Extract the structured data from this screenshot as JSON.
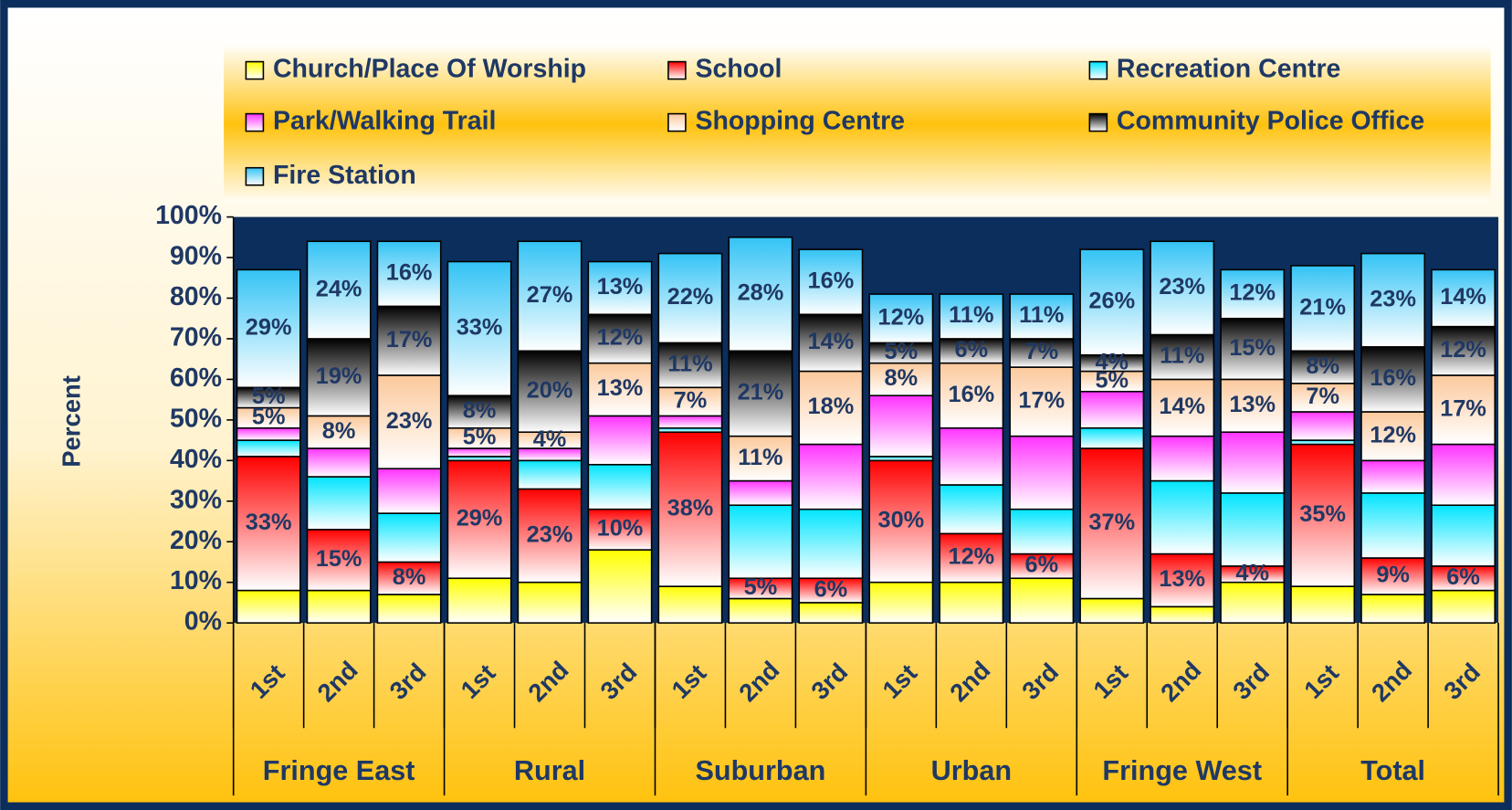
{
  "chart_data": {
    "type": "stacked_bar",
    "y_label": "Percent",
    "categories": [
      "1st",
      "2nd",
      "3rd",
      "1st",
      "2nd",
      "3rd",
      "1st",
      "2nd",
      "3rd",
      "1st",
      "2nd",
      "3rd",
      "1st",
      "2nd",
      "3rd",
      "1st",
      "2nd",
      "3rd"
    ],
    "groups": [
      "Fringe East",
      "Rural",
      "Suburban",
      "Urban",
      "Fringe West",
      "Total"
    ],
    "ylim": [
      0,
      100
    ],
    "yticks": [
      {
        "value": 0,
        "label": "0%"
      },
      {
        "value": 10,
        "label": "10%"
      },
      {
        "value": 20,
        "label": "20%"
      },
      {
        "value": 30,
        "label": "30%"
      },
      {
        "value": 40,
        "label": "40%"
      },
      {
        "value": 50,
        "label": "50%"
      },
      {
        "value": 60,
        "label": "60%"
      },
      {
        "value": 70,
        "label": "70%"
      },
      {
        "value": 80,
        "label": "80%"
      },
      {
        "value": 90,
        "label": "90%"
      },
      {
        "value": 100,
        "label": "100%"
      }
    ],
    "series": [
      {
        "name": "Church/Place Of Worship",
        "color": "#ffff00",
        "values": [
          8,
          8,
          7,
          11,
          10,
          18,
          9,
          6,
          5,
          10,
          10,
          11,
          6,
          4,
          10,
          9,
          7,
          8
        ]
      },
      {
        "name": "School",
        "color": "#ff0000",
        "values": [
          33,
          15,
          8,
          29,
          23,
          10,
          38,
          5,
          6,
          30,
          12,
          6,
          37,
          13,
          4,
          35,
          9,
          6
        ],
        "value_labels": [
          "33%",
          "15%",
          "8%",
          "29%",
          "23%",
          "10%",
          "38%",
          "5%",
          "6%",
          "30%",
          "12%",
          "6%",
          "37%",
          "13%",
          "4%",
          "35%",
          "9%",
          "6%"
        ]
      },
      {
        "name": "Recreation Centre",
        "color": "#00e5ff",
        "values": [
          4,
          13,
          12,
          1,
          7,
          11,
          1,
          18,
          17,
          1,
          12,
          11,
          5,
          18,
          18,
          1,
          16,
          15
        ]
      },
      {
        "name": "Park/Walking Trail",
        "color": "#ff33ff",
        "values": [
          3,
          7,
          11,
          2,
          3,
          12,
          3,
          6,
          16,
          15,
          14,
          18,
          9,
          11,
          15,
          7,
          8,
          15
        ]
      },
      {
        "name": "Shopping Centre",
        "color": "#fcc99c",
        "values": [
          5,
          8,
          23,
          5,
          4,
          13,
          7,
          11,
          18,
          8,
          16,
          17,
          5,
          14,
          13,
          7,
          12,
          17
        ],
        "value_labels": [
          "5%",
          "8%",
          "23%",
          "5%",
          "4%",
          "13%",
          "7%",
          "11%",
          "18%",
          "8%",
          "16%",
          "17%",
          "5%",
          "14%",
          "13%",
          "7%",
          "12%",
          "17%"
        ]
      },
      {
        "name": "Community Police Office",
        "color": "#000000",
        "values": [
          5,
          19,
          17,
          8,
          20,
          12,
          11,
          21,
          14,
          5,
          6,
          7,
          4,
          11,
          15,
          8,
          16,
          12
        ],
        "value_labels": [
          "5%",
          "19%",
          "17%",
          "8%",
          "20%",
          "12%",
          "11%",
          "21%",
          "14%",
          "5%",
          "6%",
          "7%",
          "4%",
          "11%",
          "15%",
          "8%",
          "16%",
          "12%"
        ]
      },
      {
        "name": "Fire Station",
        "color": "#33c3f5",
        "values": [
          29,
          24,
          16,
          33,
          27,
          13,
          22,
          28,
          16,
          12,
          11,
          11,
          26,
          23,
          12,
          21,
          23,
          14
        ],
        "value_labels": [
          "29%",
          "24%",
          "16%",
          "33%",
          "27%",
          "13%",
          "22%",
          "28%",
          "16%",
          "12%",
          "11%",
          "11%",
          "26%",
          "23%",
          "12%",
          "21%",
          "23%",
          "14%"
        ]
      }
    ]
  }
}
